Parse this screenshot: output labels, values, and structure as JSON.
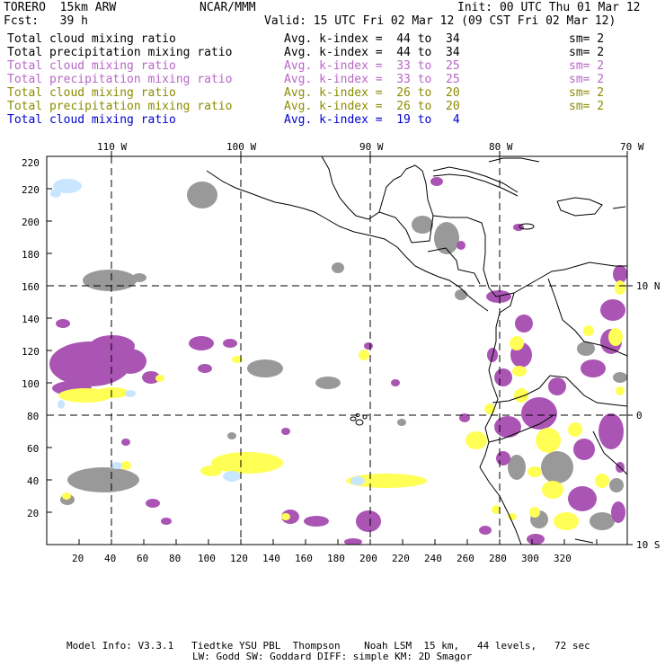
{
  "header": {
    "model": "TORERO  15km ARW",
    "org": "NCAR/MMM",
    "init": "Init: 00 UTC Thu 01 Mar 12",
    "fcst": "Fcst:   39 h",
    "valid": "Valid: 15 UTC Fri 02 Mar 12 (09 CST Fri 02 Mar 12)"
  },
  "legend": [
    {
      "field": "Total cloud mixing ratio",
      "kindex": "Avg. k-index =  44 to  34",
      "sm": "sm= 2",
      "color": "#000000"
    },
    {
      "field": "Total precipitation mixing ratio",
      "kindex": "Avg. k-index =  44 to  34",
      "sm": "sm= 2",
      "color": "#000000"
    },
    {
      "field": "Total cloud mixing ratio",
      "kindex": "Avg. k-index =  33 to  25",
      "sm": "sm= 2",
      "color": "#b966c8"
    },
    {
      "field": "Total precipitation mixing ratio",
      "kindex": "Avg. k-index =  33 to  25",
      "sm": "sm= 2",
      "color": "#b966c8"
    },
    {
      "field": "Total cloud mixing ratio",
      "kindex": "Avg. k-index =  26 to  20",
      "sm": "sm= 2",
      "color": "#8c8c00"
    },
    {
      "field": "Total precipitation mixing ratio",
      "kindex": "Avg. k-index =  26 to  20",
      "sm": "sm= 2",
      "color": "#8c8c00"
    },
    {
      "field": "Total cloud mixing ratio",
      "kindex": "Avg. k-index =  19 to   4",
      "sm": "",
      "color": "#0000d0"
    }
  ],
  "axes": {
    "x_ticks": [
      "20",
      "40",
      "60",
      "80",
      "100",
      "120",
      "140",
      "160",
      "180",
      "200",
      "220",
      "240",
      "260",
      "280",
      "300",
      "320"
    ],
    "y_ticks": [
      "20",
      "40",
      "60",
      "80",
      "100",
      "120",
      "140",
      "160",
      "180",
      "200",
      "220"
    ],
    "lon_labels": [
      "110 W",
      "100 W",
      "90 W",
      "80 W",
      "70 W"
    ],
    "lat_labels": [
      "10 N",
      "0",
      "10 S"
    ]
  },
  "footer": {
    "line1": "Model Info: V3.3.1   Tiedtke YSU PBL  Thompson    Noah LSM  15 km,   44 levels,   72 sec",
    "line2": "LW: Godd SW: Goddard DIFF: simple KM: 2D Smagor"
  },
  "colors": {
    "gray": "#999999",
    "purple": "#aa55b4",
    "yellow": "#ffff55",
    "lightblue": "#c8e6ff",
    "coast": "#000000"
  }
}
